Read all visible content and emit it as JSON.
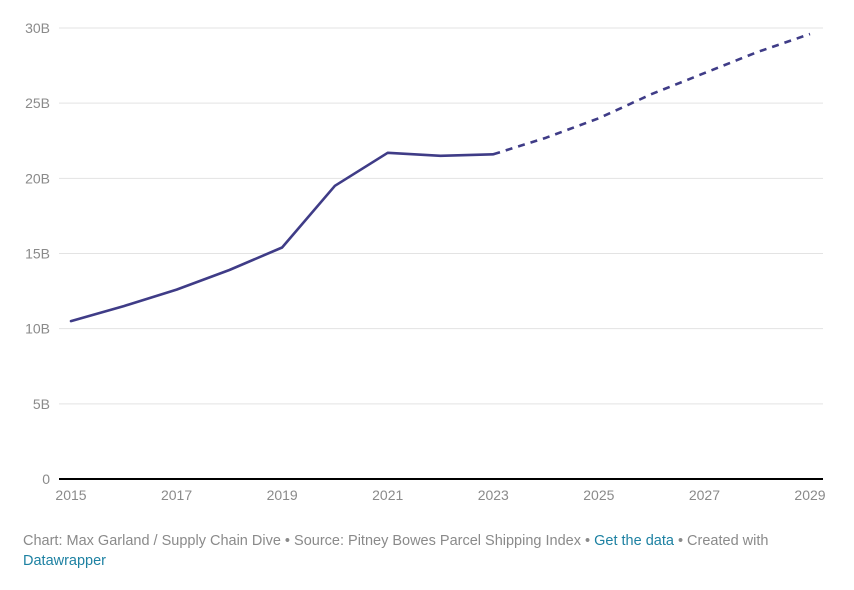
{
  "chart_data": {
    "type": "line",
    "x_ticks": [
      "2015",
      "2017",
      "2019",
      "2021",
      "2023",
      "2025",
      "2027",
      "2029"
    ],
    "y_ticks": [
      "0",
      "5B",
      "10B",
      "15B",
      "20B",
      "25B",
      "30B"
    ],
    "ylim": [
      0,
      30
    ],
    "xlim": [
      2015,
      2029
    ],
    "grid": true,
    "legend": "none",
    "series": [
      {
        "style": "solid",
        "color": "#3f3c87",
        "x": [
          2015,
          2016,
          2017,
          2018,
          2019,
          2020,
          2021,
          2022,
          2023
        ],
        "y": [
          10.5,
          11.5,
          12.6,
          13.9,
          15.4,
          19.5,
          21.7,
          21.5,
          21.6
        ]
      },
      {
        "style": "dashed",
        "color": "#3f3c87",
        "x": [
          2023,
          2024,
          2025,
          2026,
          2027,
          2028,
          2029
        ],
        "y": [
          21.6,
          22.7,
          24.0,
          25.6,
          27.0,
          28.4,
          29.6
        ]
      }
    ]
  },
  "footer": {
    "credit_prefix": "Chart: Max Garland / Supply Chain Dive • Source: Pitney Bowes Parcel Shipping Index • ",
    "get_data_label": "Get the data",
    "created_with_text": " • Created with ",
    "datawrapper_label": "Datawrapper"
  },
  "colors": {
    "line": "#3f3c87",
    "link": "#1d81a2",
    "muted_text": "#8a8a8a",
    "grid": "#e3e3e3"
  }
}
